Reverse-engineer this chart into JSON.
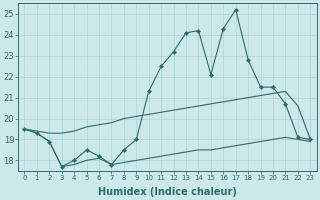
{
  "xlabel": "Humidex (Indice chaleur)",
  "hours": [
    0,
    1,
    2,
    3,
    4,
    5,
    6,
    7,
    8,
    9,
    10,
    11,
    12,
    13,
    14,
    15,
    16,
    17,
    18,
    19,
    20,
    21,
    22,
    23
  ],
  "line_top": [
    19.5,
    19.3,
    18.9,
    17.7,
    18.0,
    18.5,
    18.2,
    17.8,
    18.5,
    19.0,
    21.3,
    22.5,
    23.2,
    24.1,
    24.2,
    22.1,
    24.3,
    25.2,
    22.8,
    21.5,
    21.5,
    20.7,
    19.1,
    19.0
  ],
  "line_mid": [
    19.5,
    19.4,
    19.3,
    19.3,
    19.4,
    19.6,
    19.7,
    19.8,
    20.0,
    20.1,
    20.2,
    20.3,
    20.4,
    20.5,
    20.6,
    20.7,
    20.8,
    20.9,
    21.0,
    21.1,
    21.2,
    21.3,
    20.6,
    19.0
  ],
  "line_bot": [
    19.5,
    19.3,
    18.9,
    17.7,
    17.8,
    18.0,
    18.1,
    17.8,
    17.9,
    18.0,
    18.1,
    18.2,
    18.3,
    18.4,
    18.5,
    18.5,
    18.6,
    18.7,
    18.8,
    18.9,
    19.0,
    19.1,
    19.0,
    18.9
  ],
  "line_color": "#2e6b6b",
  "bg_color": "#cce8e8",
  "grid_color": "#aad4d4",
  "ylim": [
    17.5,
    25.5
  ],
  "xlim": [
    -0.5,
    23.5
  ],
  "yticks": [
    18,
    19,
    20,
    21,
    22,
    23,
    24,
    25
  ],
  "ytick_fontsize": 6,
  "xtick_fontsize": 5,
  "xlabel_fontsize": 7,
  "linewidth": 0.8,
  "marker_size": 2.2
}
